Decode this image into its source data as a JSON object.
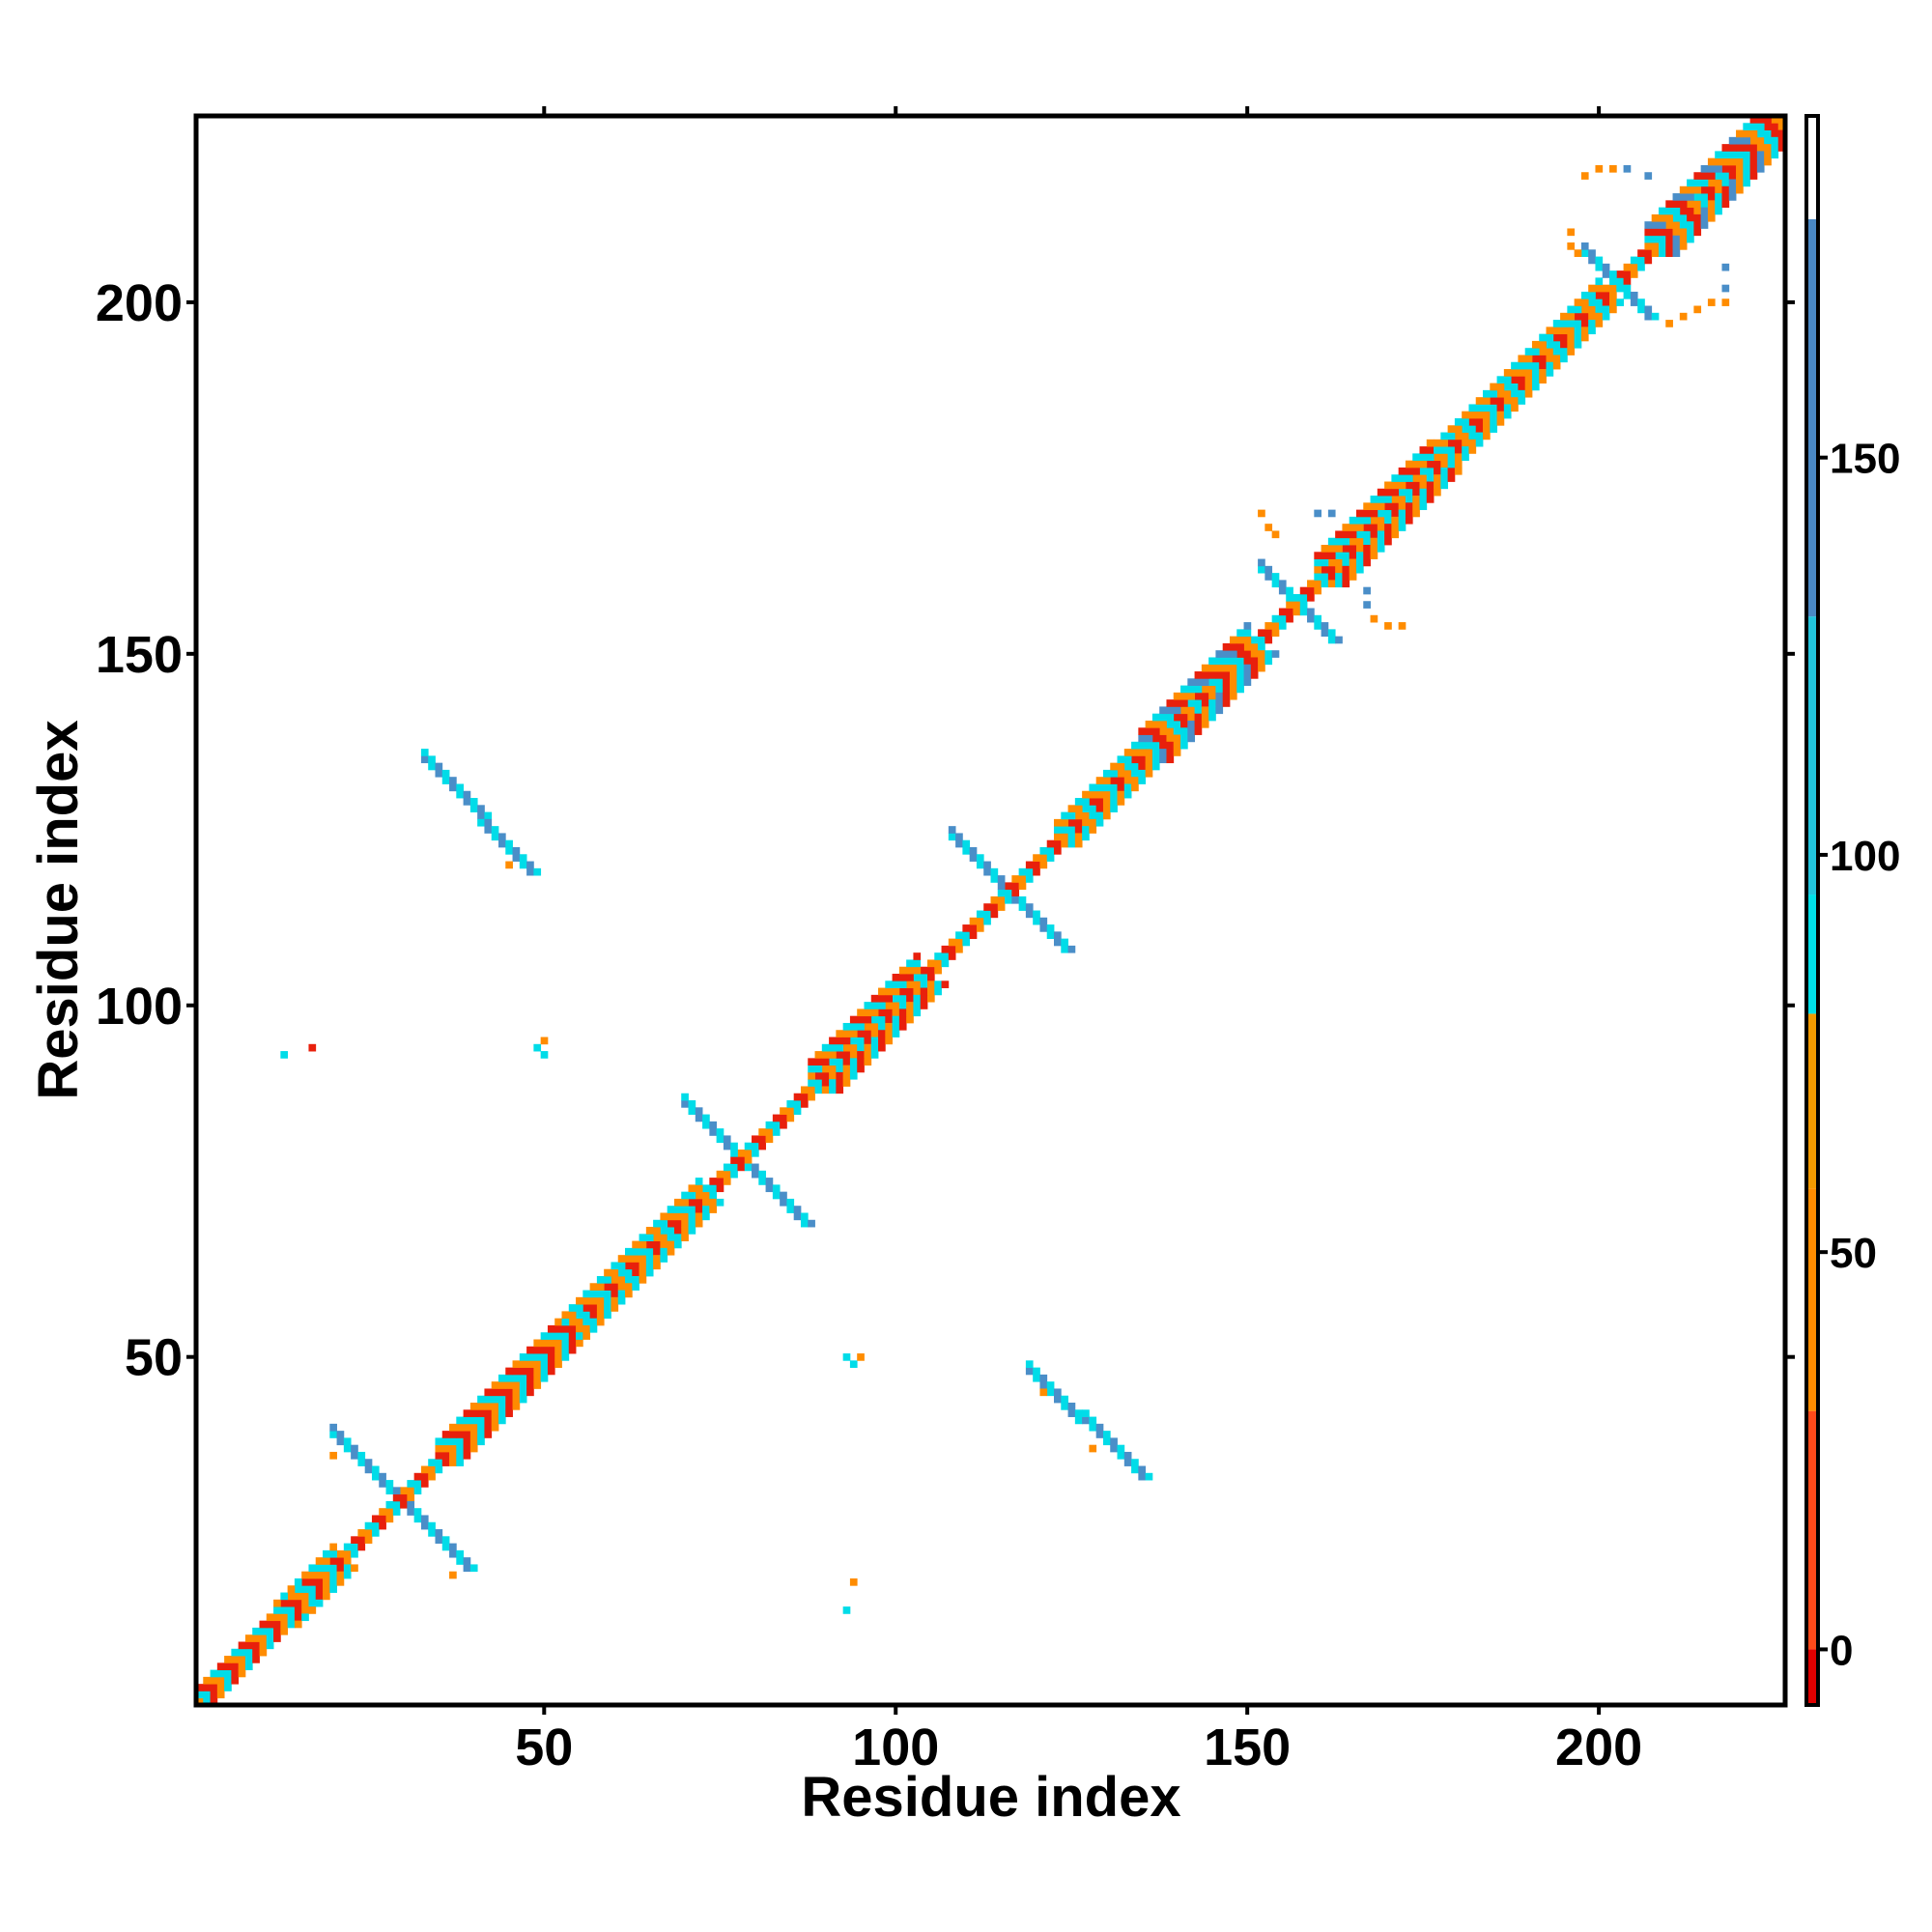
{
  "chart_data": {
    "type": "heatmap",
    "title": "",
    "xlabel": "Residue index",
    "ylabel": "Residue index",
    "xlim": [
      0.5,
      226.5
    ],
    "ylim": [
      0.5,
      226.5
    ],
    "x_ticks": [
      50,
      100,
      150,
      200
    ],
    "y_ticks": [
      50,
      100,
      150,
      200
    ],
    "grid": false,
    "legend": "colorbar-right",
    "colorbar": {
      "range": [
        -7,
        193
      ],
      "ticks": [
        0,
        50,
        100,
        150
      ],
      "bands": [
        {
          "from": -7,
          "to": 0,
          "color": "#e00000"
        },
        {
          "from": 0,
          "to": 30,
          "color": "#ff4a1a"
        },
        {
          "from": 30,
          "to": 58,
          "color": "#ff8c00"
        },
        {
          "from": 58,
          "to": 80,
          "color": "#f29a00"
        },
        {
          "from": 80,
          "to": 95,
          "color": "#00e0e8"
        },
        {
          "from": 95,
          "to": 130,
          "color": "#22c4dc"
        },
        {
          "from": 130,
          "to": 180,
          "color": "#4a88c4"
        },
        {
          "from": 180,
          "to": 193,
          "color": "#ffffff"
        }
      ]
    },
    "color_classes": {
      "red": "#e8200c",
      "orange": "#ff8c00",
      "cyan": "#00dce8",
      "steelblue": "#4a8ec8"
    },
    "diagonal": {
      "from": 1,
      "to": 226,
      "colors": [
        "red",
        "orange",
        "cyan"
      ]
    },
    "diagonal_blocks": [
      {
        "start": 1,
        "end": 16,
        "width": 2,
        "colors": [
          "red",
          "orange",
          "cyan"
        ]
      },
      {
        "start": 12,
        "end": 20,
        "width": 3,
        "colors": [
          "cyan",
          "orange"
        ]
      },
      {
        "start": 35,
        "end": 52,
        "width": 3,
        "colors": [
          "red",
          "orange",
          "cyan"
        ]
      },
      {
        "start": 52,
        "end": 72,
        "width": 3,
        "colors": [
          "orange",
          "cyan"
        ]
      },
      {
        "start": 88,
        "end": 103,
        "width": 4,
        "colors": [
          "orange",
          "cyan",
          "red"
        ]
      },
      {
        "start": 123,
        "end": 134,
        "width": 3,
        "colors": [
          "orange",
          "cyan"
        ]
      },
      {
        "start": 135,
        "end": 150,
        "width": 4,
        "colors": [
          "orange",
          "cyan",
          "steelblue",
          "red"
        ]
      },
      {
        "start": 160,
        "end": 176,
        "width": 4,
        "colors": [
          "orange",
          "cyan",
          "red"
        ]
      },
      {
        "start": 176,
        "end": 200,
        "width": 3,
        "colors": [
          "orange",
          "cyan"
        ]
      },
      {
        "start": 207,
        "end": 226,
        "width": 4,
        "colors": [
          "orange",
          "cyan",
          "red",
          "steelblue"
        ]
      }
    ],
    "antiparallel_segments": [
      {
        "x1": 20,
        "y1": 39,
        "x2": 39,
        "y2": 20,
        "width": 2,
        "colors": [
          "cyan",
          "steelblue"
        ]
      },
      {
        "x1": 70,
        "y1": 86,
        "x2": 87,
        "y2": 69,
        "width": 2,
        "colors": [
          "steelblue",
          "cyan"
        ]
      },
      {
        "x1": 108,
        "y1": 124,
        "x2": 124,
        "y2": 108,
        "width": 2,
        "colors": [
          "cyan",
          "steelblue"
        ]
      },
      {
        "x1": 152,
        "y1": 162,
        "x2": 162,
        "y2": 152,
        "width": 2,
        "colors": [
          "cyan",
          "steelblue"
        ]
      },
      {
        "x1": 198,
        "y1": 207,
        "x2": 207,
        "y2": 198,
        "width": 2,
        "colors": [
          "cyan",
          "steelblue"
        ]
      },
      {
        "x1": 33,
        "y1": 135,
        "x2": 48,
        "y2": 119,
        "width": 2,
        "colors": [
          "steelblue",
          "cyan"
        ]
      },
      {
        "x1": 119,
        "y1": 48,
        "x2": 135,
        "y2": 33,
        "width": 2,
        "colors": [
          "steelblue",
          "cyan"
        ]
      }
    ],
    "parallel_segments": [
      {
        "x1": 160,
        "y1": 163,
        "x2": 172,
        "y2": 175,
        "offset": 3,
        "colors": [
          "cyan",
          "steelblue"
        ]
      },
      {
        "x1": 210,
        "y1": 213,
        "x2": 222,
        "y2": 225,
        "offset": 3,
        "colors": [
          "cyan",
          "steelblue"
        ]
      }
    ],
    "points": [
      {
        "x": 13,
        "y": 93,
        "color": "cyan"
      },
      {
        "x": 17,
        "y": 94,
        "color": "red"
      },
      {
        "x": 49,
        "y": 94,
        "color": "cyan"
      },
      {
        "x": 50,
        "y": 93,
        "color": "cyan"
      },
      {
        "x": 50,
        "y": 95,
        "color": "orange"
      },
      {
        "x": 93,
        "y": 50,
        "color": "cyan"
      },
      {
        "x": 94,
        "y": 49,
        "color": "cyan"
      },
      {
        "x": 95,
        "y": 50,
        "color": "orange"
      },
      {
        "x": 94,
        "y": 18,
        "color": "orange"
      },
      {
        "x": 93,
        "y": 14,
        "color": "cyan"
      },
      {
        "x": 20,
        "y": 36,
        "color": "orange"
      },
      {
        "x": 37,
        "y": 19,
        "color": "orange"
      },
      {
        "x": 38,
        "y": 21,
        "color": "cyan"
      },
      {
        "x": 45,
        "y": 120,
        "color": "orange"
      },
      {
        "x": 121,
        "y": 45,
        "color": "orange"
      },
      {
        "x": 128,
        "y": 37,
        "color": "orange"
      },
      {
        "x": 152,
        "y": 170,
        "color": "orange"
      },
      {
        "x": 154,
        "y": 167,
        "color": "orange"
      },
      {
        "x": 153,
        "y": 168,
        "color": "orange"
      },
      {
        "x": 160,
        "y": 170,
        "color": "steelblue"
      },
      {
        "x": 162,
        "y": 170,
        "color": "steelblue"
      },
      {
        "x": 167,
        "y": 159,
        "color": "steelblue"
      },
      {
        "x": 167,
        "y": 157,
        "color": "steelblue"
      },
      {
        "x": 168,
        "y": 155,
        "color": "orange"
      },
      {
        "x": 170,
        "y": 154,
        "color": "orange"
      },
      {
        "x": 172,
        "y": 154,
        "color": "orange"
      },
      {
        "x": 197,
        "y": 207,
        "color": "orange"
      },
      {
        "x": 198,
        "y": 218,
        "color": "orange"
      },
      {
        "x": 200,
        "y": 219,
        "color": "orange"
      },
      {
        "x": 202,
        "y": 219,
        "color": "orange"
      },
      {
        "x": 204,
        "y": 219,
        "color": "steelblue"
      },
      {
        "x": 207,
        "y": 218,
        "color": "steelblue"
      },
      {
        "x": 209,
        "y": 210,
        "color": "cyan"
      },
      {
        "x": 210,
        "y": 197,
        "color": "orange"
      },
      {
        "x": 212,
        "y": 198,
        "color": "orange"
      },
      {
        "x": 214,
        "y": 199,
        "color": "orange"
      },
      {
        "x": 216,
        "y": 200,
        "color": "orange"
      },
      {
        "x": 218,
        "y": 202,
        "color": "steelblue"
      },
      {
        "x": 218,
        "y": 205,
        "color": "steelblue"
      },
      {
        "x": 218,
        "y": 200,
        "color": "orange"
      },
      {
        "x": 196,
        "y": 208,
        "color": "orange"
      },
      {
        "x": 196,
        "y": 210,
        "color": "orange"
      }
    ]
  }
}
